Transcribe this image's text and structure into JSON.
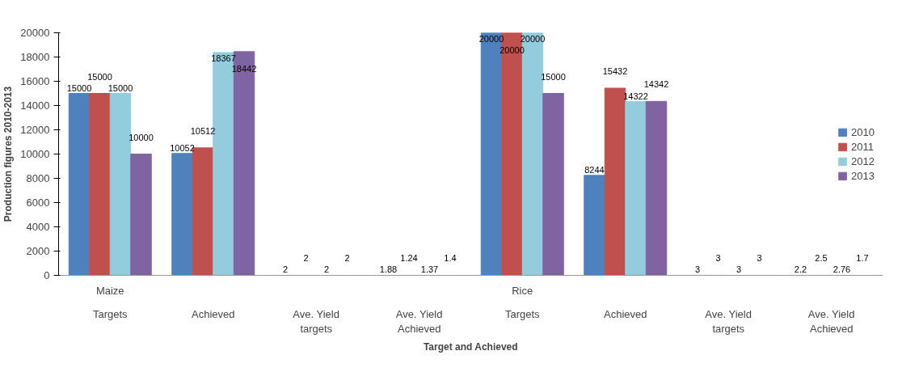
{
  "chart_data": {
    "type": "bar",
    "xlabel": "Target and Achieved",
    "ylabel": "Production figures 2010-2013",
    "categories": [
      "Targets",
      "Achieved",
      "Ave. Yield targets",
      "Ave. Yield Achieved",
      "Targets",
      "Achieved",
      "Ave. Yield targets",
      "Ave. Yield Achieved"
    ],
    "annotations": [
      "Maize",
      "Rice"
    ],
    "series": [
      {
        "name": "2010",
        "color": "#4f81bd",
        "values": [
          15000,
          10052,
          2,
          1.88,
          20000,
          8244,
          3,
          2.2
        ]
      },
      {
        "name": "2011",
        "color": "#c0504d",
        "values": [
          15000,
          10512,
          2,
          1.24,
          20000,
          15432,
          3,
          2.5
        ]
      },
      {
        "name": "2012",
        "color": "#93cddd",
        "values": [
          15000,
          18367,
          2,
          1.37,
          20000,
          14322,
          3,
          2.76
        ]
      },
      {
        "name": "2013",
        "color": "#8064a2",
        "values": [
          10000,
          18442,
          2,
          1.4,
          15000,
          14342,
          3,
          1.7
        ]
      }
    ],
    "ylim": [
      0,
      20000
    ],
    "yticks": [
      0,
      2000,
      4000,
      6000,
      8000,
      10000,
      12000,
      14000,
      16000,
      18000,
      20000
    ],
    "data_labels": true,
    "legend": "right",
    "grid": false
  }
}
